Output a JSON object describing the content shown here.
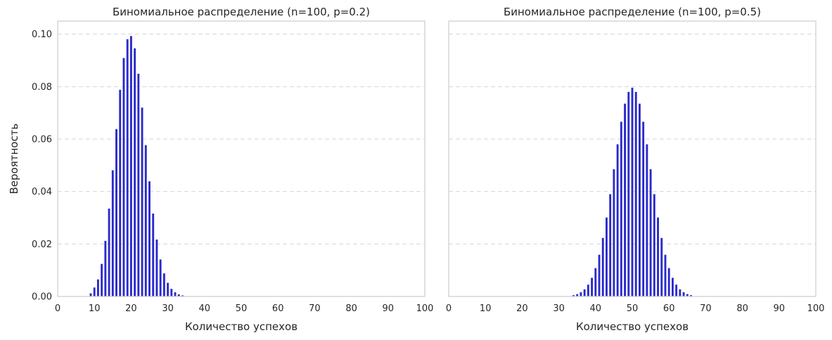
{
  "chart_data": [
    {
      "type": "bar",
      "title": "Биномиальное распределение (n=100, p=0.2)",
      "xlabel": "Количество успехов",
      "ylabel": "Вероятность",
      "xlim": [
        0,
        100
      ],
      "ylim": [
        0,
        0.105
      ],
      "xticks": [
        "0",
        "10",
        "20",
        "30",
        "40",
        "50",
        "60",
        "70",
        "80",
        "90",
        "100"
      ],
      "yticks": [
        "0.00",
        "0.02",
        "0.04",
        "0.06",
        "0.08",
        "0.10"
      ],
      "grid": "y-dashed",
      "bar_color": "#2a2acb",
      "x": [
        9,
        10,
        11,
        12,
        13,
        14,
        15,
        16,
        17,
        18,
        19,
        20,
        21,
        22,
        23,
        24,
        25,
        26,
        27,
        28,
        29,
        30,
        31,
        32,
        33,
        34
      ],
      "values": [
        0.0012,
        0.0034,
        0.0065,
        0.0124,
        0.0212,
        0.0335,
        0.0481,
        0.0638,
        0.0788,
        0.0909,
        0.0981,
        0.0993,
        0.0946,
        0.0849,
        0.072,
        0.0577,
        0.0439,
        0.0316,
        0.0217,
        0.0141,
        0.0088,
        0.0052,
        0.0029,
        0.0016,
        0.0008,
        0.0004
      ]
    },
    {
      "type": "bar",
      "title": "Биномиальное распределение (n=100, p=0.5)",
      "xlabel": "Количество успехов",
      "ylabel": "",
      "xlim": [
        0,
        100
      ],
      "ylim": [
        0,
        0.105
      ],
      "xticks": [
        "0",
        "10",
        "20",
        "30",
        "40",
        "50",
        "60",
        "70",
        "80",
        "90",
        "100"
      ],
      "yticks": [],
      "grid": "y-dashed",
      "bar_color": "#2a2acb",
      "x": [
        34,
        35,
        36,
        37,
        38,
        39,
        40,
        41,
        42,
        43,
        44,
        45,
        46,
        47,
        48,
        49,
        50,
        51,
        52,
        53,
        54,
        55,
        56,
        57,
        58,
        59,
        60,
        61,
        62,
        63,
        64,
        65,
        66
      ],
      "values": [
        0.0005,
        0.0009,
        0.0016,
        0.0027,
        0.0045,
        0.0071,
        0.0108,
        0.0159,
        0.0223,
        0.0301,
        0.039,
        0.0485,
        0.058,
        0.0666,
        0.0735,
        0.078,
        0.0796,
        0.078,
        0.0735,
        0.0666,
        0.058,
        0.0485,
        0.039,
        0.0301,
        0.0223,
        0.0159,
        0.0108,
        0.0071,
        0.0045,
        0.0027,
        0.0016,
        0.0009,
        0.0005
      ]
    }
  ]
}
